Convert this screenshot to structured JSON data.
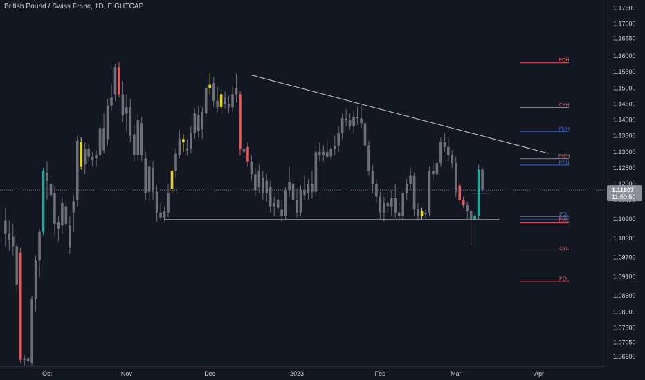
{
  "title": "British Pound / Swiss Franc, 1D, EIGHTCAP",
  "colors": {
    "background": "#131722",
    "candle_default": "#6e6f78",
    "candle_yellow": "#e6d81c",
    "candle_red": "#e25c5c",
    "candle_green": "#26a69a",
    "trendline": "#c8cacf",
    "current_price_line": "#7a6ad6",
    "level_red": "#e25c5c",
    "level_blue": "#4a66c8",
    "badge": "#8c8f99"
  },
  "chart_data": {
    "type": "candlestick",
    "symbol": "British Pound / Swiss Franc",
    "timeframe": "1D",
    "exchange": "EIGHTCAP",
    "y_axis": {
      "min": 1.063,
      "max": 1.1775,
      "tick_labels": [
        "1.17500",
        "1.17000",
        "1.16550",
        "1.16000",
        "1.15500",
        "1.15000",
        "1.14500",
        "1.14000",
        "1.13500",
        "1.13000",
        "1.12500",
        "1.12000",
        "1.11500",
        "1.10900",
        "1.10300",
        "1.09700",
        "1.09100",
        "1.08500",
        "1.08000",
        "1.07500",
        "1.07050",
        "1.06600"
      ],
      "tick_values": [
        1.175,
        1.17,
        1.1655,
        1.16,
        1.155,
        1.15,
        1.145,
        1.14,
        1.135,
        1.13,
        1.125,
        1.12,
        1.115,
        1.109,
        1.103,
        1.097,
        1.091,
        1.085,
        1.08,
        1.075,
        1.0705,
        1.066
      ]
    },
    "x_axis": {
      "labels": [
        "Oct",
        "Nov",
        "Dec",
        "2023",
        "Feb",
        "Mar",
        "Apr"
      ],
      "label_days": [
        0,
        21,
        43,
        66,
        88,
        108,
        130
      ]
    },
    "current_price": {
      "value": "1.11807",
      "countdown": "11:50:50",
      "price": 1.11807
    },
    "horizontal_lines": [
      {
        "day_start": 31,
        "day_end": 119.5,
        "price": 1.1088
      },
      {
        "day_start": 112.5,
        "day_end": 117,
        "price": 1.1171
      }
    ],
    "trendline": {
      "day_start": 54,
      "price_start": 1.154,
      "day_end": 132.5,
      "price_end": 1.1295
    },
    "levels": [
      {
        "label": "PQH",
        "price": 1.1579,
        "color": "red"
      },
      {
        "label": "CYH",
        "price": 1.1439,
        "color": "red"
      },
      {
        "label": "PMH",
        "price": 1.1364,
        "color": "blue"
      },
      {
        "label": "PWH",
        "price": 1.1279,
        "color": "red"
      },
      {
        "label": "PDH",
        "price": 1.1259,
        "color": "blue"
      },
      {
        "label": "PDL",
        "price": 1.1098,
        "color": "blue"
      },
      {
        "label": "PML",
        "price": 1.1088,
        "color": "blue"
      },
      {
        "label": "PWL",
        "price": 1.1078,
        "color": "red"
      },
      {
        "label": "CYL",
        "price": 1.099,
        "color": "red"
      },
      {
        "label": "PQL",
        "price": 1.0896,
        "color": "red"
      }
    ],
    "candles": [
      {
        "d": -11,
        "o": 1.1085,
        "h": 1.1125,
        "l": 1.1005,
        "c": 1.1045,
        "k": "n"
      },
      {
        "d": -10,
        "o": 1.1045,
        "h": 1.1085,
        "l": 1.099,
        "c": 1.1025,
        "k": "n"
      },
      {
        "d": -9,
        "o": 1.1035,
        "h": 1.1075,
        "l": 1.0975,
        "c": 1.1005,
        "k": "n"
      },
      {
        "d": -8,
        "o": 1.1005,
        "h": 1.1015,
        "l": 1.086,
        "c": 1.0885,
        "k": "n"
      },
      {
        "d": -7,
        "o": 1.0985,
        "h": 1.1,
        "l": 1.064,
        "c": 1.065,
        "k": "r"
      },
      {
        "d": -6,
        "o": 1.065,
        "h": 1.0665,
        "l": 1.063,
        "c": 1.0655,
        "k": "n"
      },
      {
        "d": -5,
        "o": 1.0655,
        "h": 1.066,
        "l": 1.0635,
        "c": 1.0645,
        "k": "n"
      },
      {
        "d": -4,
        "o": 1.064,
        "h": 1.085,
        "l": 1.063,
        "c": 1.084,
        "k": "n"
      },
      {
        "d": -3,
        "o": 1.084,
        "h": 1.0975,
        "l": 1.08,
        "c": 1.096,
        "k": "n"
      },
      {
        "d": -2,
        "o": 1.096,
        "h": 1.106,
        "l": 1.0905,
        "c": 1.105,
        "k": "n"
      },
      {
        "d": -1,
        "o": 1.105,
        "h": 1.125,
        "l": 1.104,
        "c": 1.124,
        "k": "g"
      },
      {
        "d": 0,
        "o": 1.121,
        "h": 1.127,
        "l": 1.115,
        "c": 1.1235,
        "k": "n"
      },
      {
        "d": 1,
        "o": 1.12,
        "h": 1.1225,
        "l": 1.113,
        "c": 1.1165,
        "k": "n"
      },
      {
        "d": 2,
        "o": 1.117,
        "h": 1.1195,
        "l": 1.104,
        "c": 1.1075,
        "k": "n"
      },
      {
        "d": 3,
        "o": 1.108,
        "h": 1.11,
        "l": 1.102,
        "c": 1.106,
        "k": "n"
      },
      {
        "d": 4,
        "o": 1.107,
        "h": 1.116,
        "l": 1.1045,
        "c": 1.114,
        "k": "n"
      },
      {
        "d": 5,
        "o": 1.113,
        "h": 1.115,
        "l": 1.105,
        "c": 1.1075,
        "k": "n"
      },
      {
        "d": 6,
        "o": 1.107,
        "h": 1.11,
        "l": 1.098,
        "c": 1.1,
        "k": "n"
      },
      {
        "d": 7,
        "o": 1.111,
        "h": 1.1165,
        "l": 1.105,
        "c": 1.1145,
        "k": "n"
      },
      {
        "d": 8,
        "o": 1.115,
        "h": 1.135,
        "l": 1.113,
        "c": 1.1335,
        "k": "n"
      },
      {
        "d": 9,
        "o": 1.133,
        "h": 1.1345,
        "l": 1.1245,
        "c": 1.1255,
        "k": "y"
      },
      {
        "d": 10,
        "o": 1.126,
        "h": 1.133,
        "l": 1.123,
        "c": 1.131,
        "k": "n"
      },
      {
        "d": 11,
        "o": 1.131,
        "h": 1.1325,
        "l": 1.127,
        "c": 1.1285,
        "k": "n"
      },
      {
        "d": 12,
        "o": 1.1285,
        "h": 1.13,
        "l": 1.1255,
        "c": 1.1275,
        "k": "n"
      },
      {
        "d": 13,
        "o": 1.128,
        "h": 1.1305,
        "l": 1.1255,
        "c": 1.129,
        "k": "n"
      },
      {
        "d": 14,
        "o": 1.129,
        "h": 1.139,
        "l": 1.1275,
        "c": 1.1375,
        "k": "n"
      },
      {
        "d": 15,
        "o": 1.1375,
        "h": 1.142,
        "l": 1.1295,
        "c": 1.1305,
        "k": "n"
      },
      {
        "d": 16,
        "o": 1.134,
        "h": 1.1465,
        "l": 1.132,
        "c": 1.1445,
        "k": "n"
      },
      {
        "d": 17,
        "o": 1.1445,
        "h": 1.151,
        "l": 1.143,
        "c": 1.147,
        "k": "n"
      },
      {
        "d": 18,
        "o": 1.148,
        "h": 1.1575,
        "l": 1.146,
        "c": 1.1565,
        "k": "n"
      },
      {
        "d": 19,
        "o": 1.1565,
        "h": 1.158,
        "l": 1.147,
        "c": 1.148,
        "k": "r"
      },
      {
        "d": 20,
        "o": 1.148,
        "h": 1.152,
        "l": 1.1395,
        "c": 1.1415,
        "k": "n"
      },
      {
        "d": 21,
        "o": 1.142,
        "h": 1.148,
        "l": 1.1365,
        "c": 1.144,
        "k": "n"
      },
      {
        "d": 22,
        "o": 1.144,
        "h": 1.1465,
        "l": 1.133,
        "c": 1.135,
        "k": "n"
      },
      {
        "d": 23,
        "o": 1.1355,
        "h": 1.138,
        "l": 1.127,
        "c": 1.129,
        "k": "n"
      },
      {
        "d": 24,
        "o": 1.129,
        "h": 1.142,
        "l": 1.127,
        "c": 1.14,
        "k": "n"
      },
      {
        "d": 25,
        "o": 1.139,
        "h": 1.141,
        "l": 1.127,
        "c": 1.129,
        "k": "n"
      },
      {
        "d": 26,
        "o": 1.128,
        "h": 1.13,
        "l": 1.115,
        "c": 1.117,
        "k": "n"
      },
      {
        "d": 27,
        "o": 1.1175,
        "h": 1.1275,
        "l": 1.114,
        "c": 1.1255,
        "k": "n"
      },
      {
        "d": 28,
        "o": 1.125,
        "h": 1.127,
        "l": 1.115,
        "c": 1.1175,
        "k": "n"
      },
      {
        "d": 29,
        "o": 1.1175,
        "h": 1.1195,
        "l": 1.108,
        "c": 1.111,
        "k": "n"
      },
      {
        "d": 30,
        "o": 1.111,
        "h": 1.114,
        "l": 1.1085,
        "c": 1.1095,
        "k": "n"
      },
      {
        "d": 31,
        "o": 1.1095,
        "h": 1.113,
        "l": 1.108,
        "c": 1.1115,
        "k": "n"
      },
      {
        "d": 32,
        "o": 1.111,
        "h": 1.12,
        "l": 1.1095,
        "c": 1.117,
        "k": "n"
      },
      {
        "d": 33,
        "o": 1.1185,
        "h": 1.1255,
        "l": 1.1175,
        "c": 1.124,
        "k": "y"
      },
      {
        "d": 34,
        "o": 1.124,
        "h": 1.131,
        "l": 1.122,
        "c": 1.1295,
        "k": "n"
      },
      {
        "d": 35,
        "o": 1.129,
        "h": 1.137,
        "l": 1.128,
        "c": 1.134,
        "k": "n"
      },
      {
        "d": 36,
        "o": 1.134,
        "h": 1.1355,
        "l": 1.13,
        "c": 1.133,
        "k": "y"
      },
      {
        "d": 37,
        "o": 1.131,
        "h": 1.134,
        "l": 1.129,
        "c": 1.1305,
        "k": "n"
      },
      {
        "d": 38,
        "o": 1.131,
        "h": 1.138,
        "l": 1.1295,
        "c": 1.136,
        "k": "n"
      },
      {
        "d": 39,
        "o": 1.136,
        "h": 1.1435,
        "l": 1.134,
        "c": 1.142,
        "k": "n"
      },
      {
        "d": 40,
        "o": 1.1415,
        "h": 1.1445,
        "l": 1.1345,
        "c": 1.1365,
        "k": "n"
      },
      {
        "d": 41,
        "o": 1.137,
        "h": 1.144,
        "l": 1.134,
        "c": 1.1425,
        "k": "n"
      },
      {
        "d": 42,
        "o": 1.142,
        "h": 1.1515,
        "l": 1.141,
        "c": 1.15,
        "k": "n"
      },
      {
        "d": 43,
        "o": 1.15,
        "h": 1.1545,
        "l": 1.148,
        "c": 1.151,
        "k": "y"
      },
      {
        "d": 44,
        "o": 1.1515,
        "h": 1.1535,
        "l": 1.144,
        "c": 1.146,
        "k": "n"
      },
      {
        "d": 45,
        "o": 1.146,
        "h": 1.1505,
        "l": 1.1425,
        "c": 1.144,
        "k": "n"
      },
      {
        "d": 46,
        "o": 1.144,
        "h": 1.1495,
        "l": 1.142,
        "c": 1.148,
        "k": "y"
      },
      {
        "d": 47,
        "o": 1.147,
        "h": 1.149,
        "l": 1.1435,
        "c": 1.145,
        "k": "n"
      },
      {
        "d": 48,
        "o": 1.145,
        "h": 1.1475,
        "l": 1.142,
        "c": 1.144,
        "k": "n"
      },
      {
        "d": 49,
        "o": 1.144,
        "h": 1.1505,
        "l": 1.1425,
        "c": 1.148,
        "k": "n"
      },
      {
        "d": 50,
        "o": 1.148,
        "h": 1.1545,
        "l": 1.1455,
        "c": 1.15,
        "k": "n"
      },
      {
        "d": 51,
        "o": 1.148,
        "h": 1.149,
        "l": 1.129,
        "c": 1.131,
        "k": "r"
      },
      {
        "d": 52,
        "o": 1.131,
        "h": 1.133,
        "l": 1.128,
        "c": 1.13,
        "k": "n"
      },
      {
        "d": 53,
        "o": 1.1315,
        "h": 1.133,
        "l": 1.1255,
        "c": 1.127,
        "k": "r"
      },
      {
        "d": 54,
        "o": 1.127,
        "h": 1.129,
        "l": 1.121,
        "c": 1.123,
        "k": "n"
      },
      {
        "d": 55,
        "o": 1.123,
        "h": 1.125,
        "l": 1.116,
        "c": 1.118,
        "k": "n"
      },
      {
        "d": 56,
        "o": 1.119,
        "h": 1.126,
        "l": 1.117,
        "c": 1.124,
        "k": "n"
      },
      {
        "d": 57,
        "o": 1.122,
        "h": 1.124,
        "l": 1.115,
        "c": 1.117,
        "k": "n"
      },
      {
        "d": 58,
        "o": 1.117,
        "h": 1.123,
        "l": 1.1145,
        "c": 1.121,
        "k": "n"
      },
      {
        "d": 59,
        "o": 1.119,
        "h": 1.121,
        "l": 1.111,
        "c": 1.113,
        "k": "n"
      },
      {
        "d": 60,
        "o": 1.113,
        "h": 1.116,
        "l": 1.11,
        "c": 1.114,
        "k": "n"
      },
      {
        "d": 61,
        "o": 1.115,
        "h": 1.118,
        "l": 1.111,
        "c": 1.1125,
        "k": "n"
      },
      {
        "d": 62,
        "o": 1.112,
        "h": 1.115,
        "l": 1.108,
        "c": 1.11,
        "k": "n"
      },
      {
        "d": 63,
        "o": 1.11,
        "h": 1.119,
        "l": 1.109,
        "c": 1.118,
        "k": "n"
      },
      {
        "d": 64,
        "o": 1.118,
        "h": 1.1255,
        "l": 1.116,
        "c": 1.1205,
        "k": "n"
      },
      {
        "d": 65,
        "o": 1.12,
        "h": 1.122,
        "l": 1.114,
        "c": 1.115,
        "k": "n"
      },
      {
        "d": 66,
        "o": 1.115,
        "h": 1.1185,
        "l": 1.1095,
        "c": 1.111,
        "k": "n"
      },
      {
        "d": 67,
        "o": 1.111,
        "h": 1.1195,
        "l": 1.11,
        "c": 1.118,
        "k": "n"
      },
      {
        "d": 68,
        "o": 1.118,
        "h": 1.1225,
        "l": 1.115,
        "c": 1.1165,
        "k": "n"
      },
      {
        "d": 69,
        "o": 1.117,
        "h": 1.1215,
        "l": 1.115,
        "c": 1.12,
        "k": "n"
      },
      {
        "d": 70,
        "o": 1.12,
        "h": 1.124,
        "l": 1.1155,
        "c": 1.1175,
        "k": "n"
      },
      {
        "d": 71,
        "o": 1.1175,
        "h": 1.132,
        "l": 1.116,
        "c": 1.13,
        "k": "n"
      },
      {
        "d": 72,
        "o": 1.13,
        "h": 1.133,
        "l": 1.127,
        "c": 1.129,
        "k": "n"
      },
      {
        "d": 73,
        "o": 1.129,
        "h": 1.132,
        "l": 1.127,
        "c": 1.13,
        "k": "n"
      },
      {
        "d": 74,
        "o": 1.13,
        "h": 1.1335,
        "l": 1.128,
        "c": 1.1285,
        "k": "n"
      },
      {
        "d": 75,
        "o": 1.1285,
        "h": 1.132,
        "l": 1.1275,
        "c": 1.131,
        "k": "n"
      },
      {
        "d": 76,
        "o": 1.131,
        "h": 1.135,
        "l": 1.129,
        "c": 1.132,
        "k": "n"
      },
      {
        "d": 77,
        "o": 1.132,
        "h": 1.138,
        "l": 1.13,
        "c": 1.136,
        "k": "n"
      },
      {
        "d": 78,
        "o": 1.136,
        "h": 1.142,
        "l": 1.134,
        "c": 1.1405,
        "k": "n"
      },
      {
        "d": 79,
        "o": 1.1405,
        "h": 1.1435,
        "l": 1.138,
        "c": 1.14,
        "k": "n"
      },
      {
        "d": 80,
        "o": 1.14,
        "h": 1.142,
        "l": 1.137,
        "c": 1.138,
        "k": "n"
      },
      {
        "d": 81,
        "o": 1.138,
        "h": 1.143,
        "l": 1.136,
        "c": 1.141,
        "k": "n"
      },
      {
        "d": 82,
        "o": 1.141,
        "h": 1.144,
        "l": 1.1385,
        "c": 1.1405,
        "k": "n"
      },
      {
        "d": 83,
        "o": 1.1405,
        "h": 1.1445,
        "l": 1.1375,
        "c": 1.139,
        "k": "n"
      },
      {
        "d": 84,
        "o": 1.139,
        "h": 1.1415,
        "l": 1.13,
        "c": 1.132,
        "k": "n"
      },
      {
        "d": 85,
        "o": 1.132,
        "h": 1.1335,
        "l": 1.1225,
        "c": 1.124,
        "k": "n"
      },
      {
        "d": 86,
        "o": 1.124,
        "h": 1.126,
        "l": 1.117,
        "c": 1.12,
        "k": "n"
      },
      {
        "d": 87,
        "o": 1.12,
        "h": 1.1215,
        "l": 1.114,
        "c": 1.116,
        "k": "n"
      },
      {
        "d": 88,
        "o": 1.116,
        "h": 1.1175,
        "l": 1.109,
        "c": 1.111,
        "k": "n"
      },
      {
        "d": 89,
        "o": 1.111,
        "h": 1.116,
        "l": 1.108,
        "c": 1.114,
        "k": "n"
      },
      {
        "d": 90,
        "o": 1.114,
        "h": 1.1175,
        "l": 1.111,
        "c": 1.113,
        "k": "n"
      },
      {
        "d": 91,
        "o": 1.113,
        "h": 1.118,
        "l": 1.11,
        "c": 1.1155,
        "k": "n"
      },
      {
        "d": 92,
        "o": 1.1155,
        "h": 1.12,
        "l": 1.1095,
        "c": 1.111,
        "k": "n"
      },
      {
        "d": 93,
        "o": 1.111,
        "h": 1.114,
        "l": 1.108,
        "c": 1.11,
        "k": "n"
      },
      {
        "d": 94,
        "o": 1.11,
        "h": 1.1185,
        "l": 1.1085,
        "c": 1.117,
        "k": "n"
      },
      {
        "d": 95,
        "o": 1.117,
        "h": 1.1215,
        "l": 1.115,
        "c": 1.12,
        "k": "n"
      },
      {
        "d": 96,
        "o": 1.12,
        "h": 1.125,
        "l": 1.118,
        "c": 1.1225,
        "k": "n"
      },
      {
        "d": 97,
        "o": 1.1225,
        "h": 1.1235,
        "l": 1.11,
        "c": 1.112,
        "k": "n"
      },
      {
        "d": 98,
        "o": 1.112,
        "h": 1.114,
        "l": 1.1085,
        "c": 1.11,
        "k": "n"
      },
      {
        "d": 99,
        "o": 1.11,
        "h": 1.1125,
        "l": 1.109,
        "c": 1.1115,
        "k": "y"
      },
      {
        "d": 100,
        "o": 1.1105,
        "h": 1.112,
        "l": 1.1095,
        "c": 1.111,
        "k": "n"
      },
      {
        "d": 101,
        "o": 1.111,
        "h": 1.1255,
        "l": 1.11,
        "c": 1.124,
        "k": "n"
      },
      {
        "d": 102,
        "o": 1.124,
        "h": 1.1265,
        "l": 1.121,
        "c": 1.123,
        "k": "n"
      },
      {
        "d": 103,
        "o": 1.123,
        "h": 1.1285,
        "l": 1.1215,
        "c": 1.1265,
        "k": "n"
      },
      {
        "d": 104,
        "o": 1.1265,
        "h": 1.1345,
        "l": 1.1255,
        "c": 1.133,
        "k": "n"
      },
      {
        "d": 105,
        "o": 1.133,
        "h": 1.136,
        "l": 1.13,
        "c": 1.1315,
        "k": "n"
      },
      {
        "d": 106,
        "o": 1.1315,
        "h": 1.1345,
        "l": 1.127,
        "c": 1.129,
        "k": "n"
      },
      {
        "d": 107,
        "o": 1.129,
        "h": 1.1305,
        "l": 1.125,
        "c": 1.1265,
        "k": "n"
      },
      {
        "d": 108,
        "o": 1.1265,
        "h": 1.1285,
        "l": 1.116,
        "c": 1.1175,
        "k": "n"
      },
      {
        "d": 109,
        "o": 1.1195,
        "h": 1.1205,
        "l": 1.114,
        "c": 1.115,
        "k": "r"
      },
      {
        "d": 110,
        "o": 1.115,
        "h": 1.116,
        "l": 1.1125,
        "c": 1.1135,
        "k": "r"
      },
      {
        "d": 111,
        "o": 1.1135,
        "h": 1.1145,
        "l": 1.109,
        "c": 1.1115,
        "k": "n"
      },
      {
        "d": 112,
        "o": 1.1115,
        "h": 1.112,
        "l": 1.101,
        "c": 1.109,
        "k": "n"
      },
      {
        "d": 113,
        "o": 1.109,
        "h": 1.1105,
        "l": 1.1085,
        "c": 1.11,
        "k": "g"
      },
      {
        "d": 114,
        "o": 1.11,
        "h": 1.126,
        "l": 1.109,
        "c": 1.1245,
        "k": "g"
      },
      {
        "d": 115,
        "o": 1.1245,
        "h": 1.125,
        "l": 1.1175,
        "c": 1.1181,
        "k": "n"
      }
    ]
  }
}
